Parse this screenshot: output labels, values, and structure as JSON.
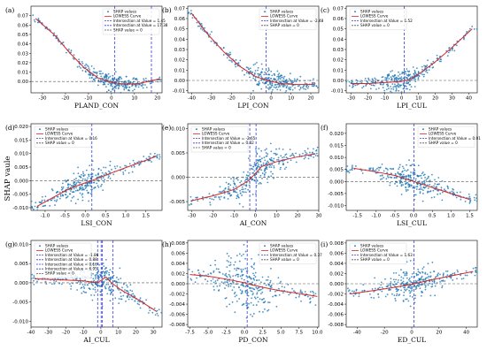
{
  "figure": {
    "ylabel": "SHAP vaule"
  },
  "legend_labels": {
    "shap": "SHAP values",
    "lowess": "LOWESS Curve",
    "zero": "SHAP value = 0",
    "intersection_prefix": "Intersection at Value = "
  },
  "colors": {
    "points": "#1f77b4",
    "curve": "#d62728",
    "zero_line": "#555555",
    "intersect": "#3a3ad8"
  },
  "chart_data": [
    {
      "type": "scatter",
      "panel": "(a)",
      "xlabel": "PLAND_CON",
      "xlim": [
        -35,
        22
      ],
      "ylim": [
        -0.012,
        0.08
      ],
      "xticks": [
        -30,
        -20,
        -10,
        0,
        10,
        20
      ],
      "yticks": [
        0.0,
        0.01,
        0.02,
        0.03,
        0.04,
        0.05,
        0.06,
        0.07
      ],
      "ydec": 2,
      "intersections": [
        1.45,
        17.38
      ],
      "legend_pos": "top-right",
      "lowess": [
        [
          -33,
          0.067
        ],
        [
          -25,
          0.05
        ],
        [
          -18,
          0.03
        ],
        [
          -12,
          0.015
        ],
        [
          -6,
          0.004
        ],
        [
          0,
          -0.001
        ],
        [
          6,
          -0.003
        ],
        [
          12,
          -0.002
        ],
        [
          18,
          0.001
        ],
        [
          21,
          0.003
        ]
      ],
      "spread": 0.0035
    },
    {
      "type": "scatter",
      "panel": "(b)",
      "xlabel": "LPI_CON",
      "xlim": [
        -42,
        24
      ],
      "ylim": [
        -0.012,
        0.072
      ],
      "xticks": [
        -40,
        -30,
        -20,
        -10,
        0,
        10,
        20
      ],
      "yticks": [
        -0.01,
        0.0,
        0.01,
        0.02,
        0.03,
        0.04,
        0.05,
        0.06,
        0.07
      ],
      "ydec": 2,
      "intersections": [
        -2.48
      ],
      "legend_pos": "top-right",
      "lowess": [
        [
          -40,
          0.065
        ],
        [
          -32,
          0.045
        ],
        [
          -24,
          0.028
        ],
        [
          -16,
          0.014
        ],
        [
          -8,
          0.004
        ],
        [
          -2,
          0.0
        ],
        [
          5,
          -0.003
        ],
        [
          12,
          -0.004
        ],
        [
          22,
          -0.004
        ]
      ],
      "spread": 0.004
    },
    {
      "type": "scatter",
      "panel": "(c)",
      "xlabel": "LPI_CUL",
      "xlim": [
        -33,
        45
      ],
      "ylim": [
        -0.012,
        0.072
      ],
      "xticks": [
        -30,
        -20,
        -10,
        0,
        10,
        20,
        30,
        40
      ],
      "yticks": [
        -0.01,
        0.0,
        0.01,
        0.02,
        0.03,
        0.04,
        0.05,
        0.06,
        0.07
      ],
      "ydec": 2,
      "intersections": [
        1.52
      ],
      "legend_pos": "top-left",
      "lowess": [
        [
          -30,
          -0.003
        ],
        [
          -20,
          -0.003
        ],
        [
          -10,
          -0.002
        ],
        [
          0,
          -0.001
        ],
        [
          5,
          0.001
        ],
        [
          10,
          0.006
        ],
        [
          20,
          0.018
        ],
        [
          30,
          0.032
        ],
        [
          42,
          0.05
        ]
      ],
      "spread": 0.0035
    },
    {
      "type": "scatter",
      "panel": "(d)",
      "xlabel": "LSI_CON",
      "xlim": [
        -1.35,
        1.9
      ],
      "ylim": [
        -0.011,
        0.021
      ],
      "xticks": [
        -1.0,
        -0.5,
        0.0,
        0.5,
        1.0,
        1.5
      ],
      "yticks": [
        -0.01,
        -0.005,
        0.0,
        0.005,
        0.01,
        0.015,
        0.02
      ],
      "ydec": 3,
      "intersections": [
        0.16
      ],
      "legend_pos": "top-left",
      "lowess": [
        [
          -1.2,
          -0.0095
        ],
        [
          -0.8,
          -0.0062
        ],
        [
          -0.4,
          -0.003
        ],
        [
          0.0,
          -0.0008
        ],
        [
          0.16,
          0.0
        ],
        [
          0.5,
          0.002
        ],
        [
          1.0,
          0.0048
        ],
        [
          1.5,
          0.0075
        ],
        [
          1.75,
          0.009
        ]
      ],
      "spread": 0.0018
    },
    {
      "type": "scatter",
      "panel": "(e)",
      "xlabel": "AI_CON",
      "xlim": [
        -32,
        30
      ],
      "ylim": [
        -0.0068,
        0.011
      ],
      "xticks": [
        -30,
        -20,
        -10,
        0,
        10,
        20,
        30
      ],
      "yticks": [
        -0.005,
        0.0,
        0.005,
        0.01
      ],
      "ydec": 3,
      "intersections": [
        -2.65,
        0.32
      ],
      "legend_pos": "top-left",
      "lowess": [
        [
          -30,
          -0.0048
        ],
        [
          -20,
          -0.0038
        ],
        [
          -10,
          -0.0025
        ],
        [
          -3,
          -0.0006
        ],
        [
          0,
          0.0008
        ],
        [
          3,
          0.0022
        ],
        [
          10,
          0.0032
        ],
        [
          20,
          0.0042
        ],
        [
          28,
          0.0048
        ]
      ],
      "spread": 0.0012
    },
    {
      "type": "scatter",
      "panel": "(f)",
      "xlabel": "LSI_CUL",
      "xlim": [
        -1.8,
        1.7
      ],
      "ylim": [
        -0.012,
        0.024
      ],
      "xticks": [
        -1.5,
        -1.0,
        -0.5,
        0.0,
        0.5,
        1.0,
        1.5
      ],
      "yticks": [
        -0.01,
        -0.005,
        0.0,
        0.005,
        0.01,
        0.015,
        0.02
      ],
      "ydec": 3,
      "intersections": [
        0.01
      ],
      "legend_pos": "top-right",
      "lowess": [
        [
          -1.6,
          0.0055
        ],
        [
          -1.0,
          0.004
        ],
        [
          -0.5,
          0.0025
        ],
        [
          0.0,
          0.0
        ],
        [
          0.5,
          -0.0025
        ],
        [
          1.0,
          -0.005
        ],
        [
          1.5,
          -0.0075
        ]
      ],
      "spread": 0.002
    },
    {
      "type": "scatter",
      "panel": "(g)",
      "xlabel": "AI_CUL",
      "xlim": [
        -40,
        35
      ],
      "ylim": [
        -0.0115,
        0.011
      ],
      "xticks": [
        -40,
        -30,
        -20,
        -10,
        0,
        10,
        20,
        30
      ],
      "yticks": [
        -0.01,
        -0.005,
        0.0,
        0.005,
        0.01
      ],
      "ydec": 3,
      "intersections": [
        -1.86,
        0.88,
        0.16,
        6.95
      ],
      "legend_pos": "top-left",
      "lowess": [
        [
          -38,
          0.001
        ],
        [
          -25,
          0.0008
        ],
        [
          -10,
          0.0005
        ],
        [
          -2,
          0.0
        ],
        [
          3,
          0.0015
        ],
        [
          6,
          0.0
        ],
        [
          12,
          -0.002
        ],
        [
          20,
          -0.004
        ],
        [
          32,
          -0.0075
        ]
      ],
      "spread": 0.0015
    },
    {
      "type": "scatter",
      "panel": "(h)",
      "xlabel": "PD_CON",
      "xlim": [
        -7.8,
        10.2
      ],
      "ylim": [
        -0.0085,
        0.0085
      ],
      "xticks": [
        -7.5,
        -5.0,
        -2.5,
        0.0,
        2.5,
        5.0,
        7.5,
        10.0
      ],
      "yticks": [
        -0.008,
        -0.006,
        -0.004,
        -0.002,
        0.0,
        0.002,
        0.004,
        0.006,
        0.008
      ],
      "ydec": 3,
      "intersections": [
        0.37
      ],
      "legend_pos": "top-right",
      "lowess": [
        [
          -7.5,
          0.0018
        ],
        [
          -5,
          0.0015
        ],
        [
          -2.5,
          0.0009
        ],
        [
          0,
          0.0002
        ],
        [
          0.37,
          0.0
        ],
        [
          2.5,
          -0.0007
        ],
        [
          5,
          -0.0014
        ],
        [
          7.5,
          -0.0019
        ],
        [
          10,
          -0.0025
        ]
      ],
      "spread": 0.002
    },
    {
      "type": "scatter",
      "panel": "(i)",
      "xlabel": "ED_CUL",
      "xlim": [
        -48,
        48
      ],
      "ylim": [
        -0.0085,
        0.0085
      ],
      "xticks": [
        -40,
        -20,
        0,
        20,
        40
      ],
      "yticks": [
        -0.008,
        -0.006,
        -0.004,
        -0.002,
        0.0,
        0.002,
        0.004,
        0.006,
        0.008
      ],
      "ydec": 3,
      "intersections": [
        1.63
      ],
      "legend_pos": "top-left",
      "lowess": [
        [
          -45,
          -0.002
        ],
        [
          -30,
          -0.0014
        ],
        [
          -15,
          -0.0008
        ],
        [
          0,
          -0.0001
        ],
        [
          1.63,
          0.0
        ],
        [
          15,
          0.0008
        ],
        [
          30,
          0.0016
        ],
        [
          45,
          0.0024
        ]
      ],
      "spread": 0.0012
    }
  ]
}
